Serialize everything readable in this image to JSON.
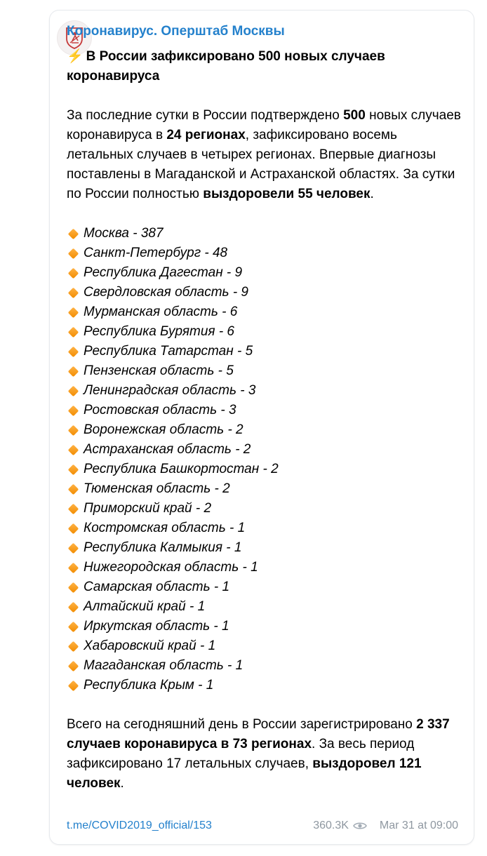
{
  "channel": {
    "name": "Коронавирус. Оперштаб Москвы"
  },
  "post": {
    "title_emoji": "⚡",
    "title": "В России зафиксировано 500 новых случаев коронавируса",
    "p1": {
      "t1": "За последние сутки в России подтверждено ",
      "b1": "500",
      "t2": " новых случаев коронавируса в ",
      "b2": "24 регионах",
      "t3": ", зафиксировано восемь летальных случаев в четырех регионах. Впервые диагнозы поставлены в Магаданской и Астраханской областях. За сутки по России полностью ",
      "b3": "выздоровели 55 человек",
      "t4": "."
    },
    "regions": [
      "Москва - 387",
      "Санкт-Петербург - 48",
      "Республика Дагестан - 9",
      "Свердловская область - 9",
      "Мурманская область - 6",
      "Республика Бурятия - 6",
      "Республика Татарстан - 5",
      "Пензенская область - 5",
      "Ленинградская область - 3",
      "Ростовская область - 3",
      "Воронежская область - 2",
      "Астраханская область - 2",
      "Республика Башкортостан - 2",
      "Тюменская область - 2",
      "Приморский край - 2",
      "Костромская область - 1",
      "Республика Калмыкия - 1",
      "Нижегородская область - 1",
      "Самарская область - 1",
      "Алтайский край - 1",
      "Иркутская область - 1",
      "Хабаровский край - 1",
      "Магаданская область - 1",
      "Республика Крым - 1"
    ],
    "p2": {
      "t1": "Всего на сегодняшний день в России зарегистрировано ",
      "b1": "2 337 случаев коронавируса в 73 регионах",
      "t2": ". За весь период зафиксировано 17 летальных случаев, ",
      "b2": "выздоровел 121 человек",
      "t3": "."
    }
  },
  "footer": {
    "link": "t.me/COVID2019_official/153",
    "views": "360.3K",
    "date": "Mar 31 at 09:00"
  },
  "colors": {
    "link": "#2481cc",
    "meta": "#8e97a0",
    "diamond": "#f28c00"
  },
  "icons": {
    "list_marker": "orange-diamond-icon",
    "views": "eye-icon",
    "avatar": "moscow-coat-of-arms-icon",
    "title": "high-voltage-icon"
  }
}
